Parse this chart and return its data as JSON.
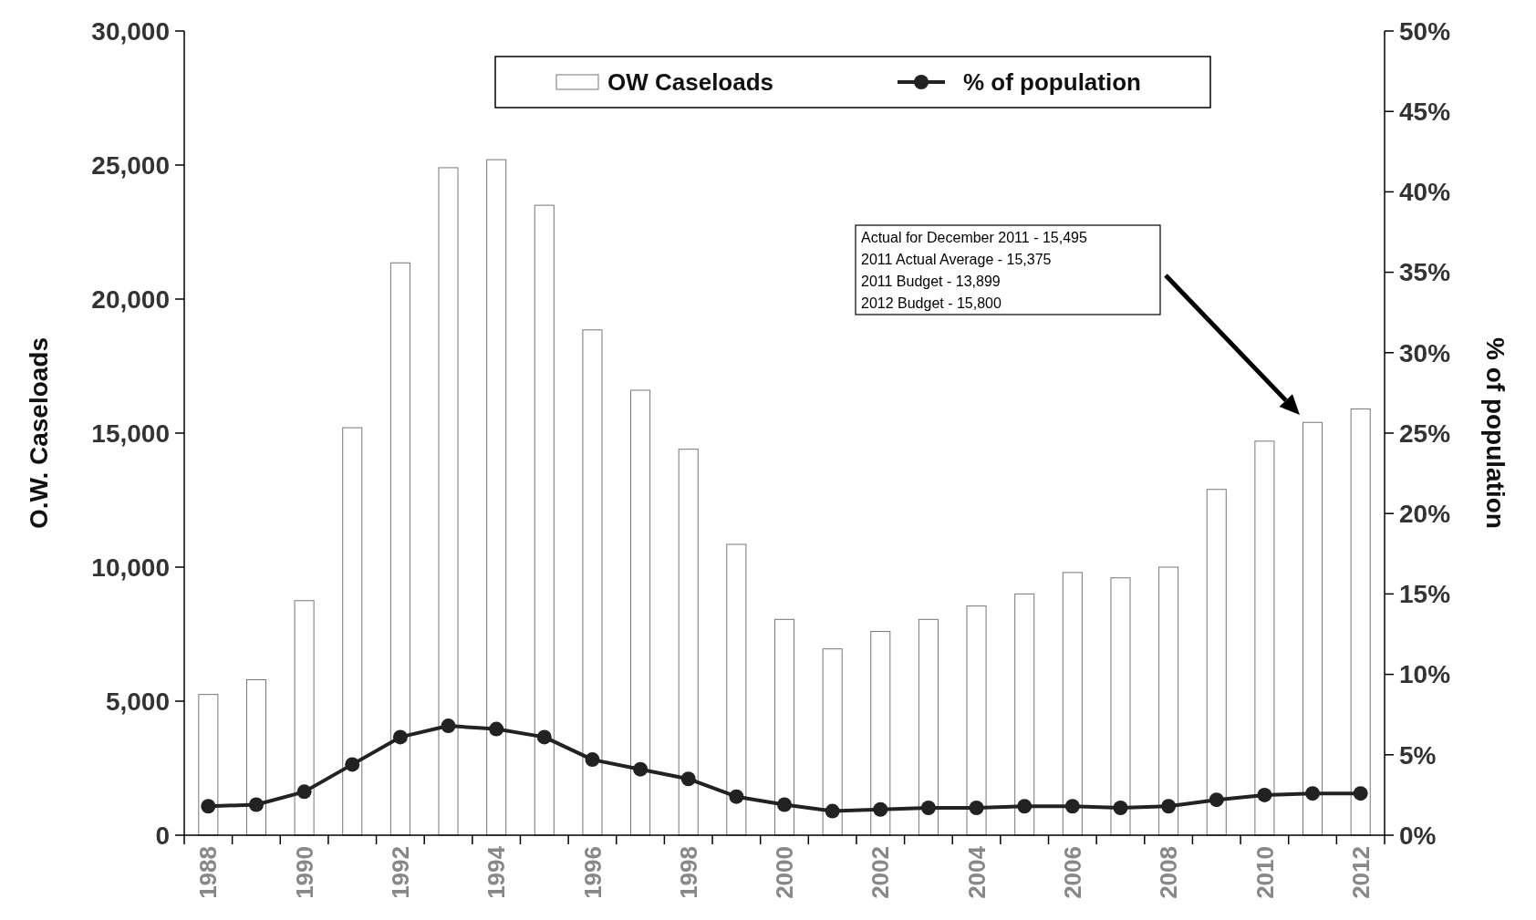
{
  "chart_data": {
    "type": "bar",
    "ylabel": "O.W. Caseloads",
    "y2label": "% of population",
    "categories": [
      "1988",
      null,
      "1990",
      null,
      "1992",
      null,
      "1994",
      null,
      "1996",
      null,
      "1998",
      null,
      "2000",
      null,
      "2002",
      null,
      "2004",
      null,
      "2006",
      null,
      "2008",
      null,
      "2010",
      null,
      "2012"
    ],
    "series": [
      {
        "name": "OW Caseloads",
        "color": "#ffffff",
        "values": [
          5250,
          5800,
          8750,
          15200,
          21350,
          24900,
          25200,
          23500,
          18850,
          16600,
          14400,
          10850,
          8050,
          6950,
          7600,
          8050,
          8550,
          9000,
          9800,
          9600,
          10000,
          12900,
          14700,
          15400,
          15900
        ]
      },
      {
        "name": "% of population",
        "type": "line",
        "axis": "y2",
        "color": "#222222",
        "values": [
          1.8,
          1.9,
          2.7,
          4.4,
          6.1,
          6.8,
          6.6,
          6.1,
          4.7,
          4.1,
          3.5,
          2.4,
          1.9,
          1.5,
          1.6,
          1.7,
          1.7,
          1.8,
          1.8,
          1.7,
          1.8,
          2.2,
          2.5,
          2.6,
          2.6
        ]
      }
    ],
    "ylim": [
      0,
      30000
    ],
    "yticks": [
      0,
      {
        "value": 5000,
        "label": "5,000"
      },
      {
        "value": 10000,
        "label": "10,000"
      },
      {
        "value": 15000,
        "label": "15,000"
      },
      {
        "value": 20000,
        "label": "20,000"
      },
      {
        "value": 25000,
        "label": "25,000"
      },
      {
        "value": 30000,
        "label": "30,000"
      }
    ],
    "y2lim": [
      0,
      50
    ],
    "y2ticks": [
      {
        "value": 0,
        "label": "0%"
      },
      {
        "value": 5,
        "label": "5%"
      },
      {
        "value": 10,
        "label": "10%"
      },
      {
        "value": 15,
        "label": "15%"
      },
      {
        "value": 20,
        "label": "20%"
      },
      {
        "value": 25,
        "label": "25%"
      },
      {
        "value": 30,
        "label": "30%"
      },
      {
        "value": 35,
        "label": "35%"
      },
      {
        "value": 40,
        "label": "40%"
      },
      {
        "value": 45,
        "label": "45%"
      },
      {
        "value": 50,
        "label": "50%"
      }
    ],
    "annotations": [
      "Actual for December 2011 - 15,495",
      "2011 Actual Average - 15,375",
      "2011 Budget - 13,899",
      "2012 Budget - 15,800"
    ],
    "legend": "top",
    "grid": false,
    "marker": "circle",
    "line_style": "solid"
  }
}
